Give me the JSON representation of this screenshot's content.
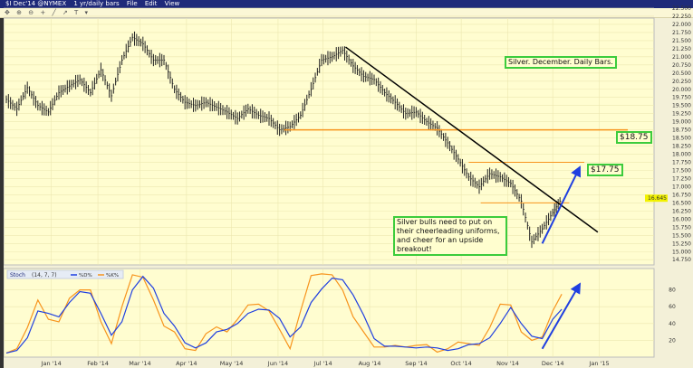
{
  "window": {
    "symbol": "$I Dec'14 @NYMEX",
    "period": "1 yr/daily bars",
    "menu": [
      "File",
      "Edit",
      "View"
    ]
  },
  "toolbar": {
    "icons": [
      "hand-icon",
      "zoom-in-icon",
      "zoom-out-icon",
      "crosshair-icon",
      "trendline-icon",
      "arrow-icon",
      "text-icon",
      "dropdown-icon"
    ]
  },
  "colors": {
    "background": "#fffdd0",
    "bars": "#222222",
    "support": "#f7941d",
    "trendline": "#000000",
    "arrow": "#1f3fe0",
    "stoch_d": "#1f3fe0",
    "stoch_k": "#f7941d",
    "label_border": "#3ccc3c",
    "last_price_highlight": "#f2f200"
  },
  "chart_data": [
    {
      "type": "bar",
      "title": "",
      "ylim": [
        14.75,
        22.5
      ],
      "yticks": [
        "22.500",
        "22.250",
        "22.000",
        "21.750",
        "21.500",
        "21.250",
        "21.000",
        "20.750",
        "20.500",
        "20.250",
        "20.000",
        "19.750",
        "19.500",
        "19.250",
        "19.000",
        "18.750",
        "18.500",
        "18.250",
        "18.000",
        "17.750",
        "17.500",
        "17.250",
        "17.000",
        "16.750",
        "16.500",
        "16.250",
        "16.000",
        "15.750",
        "15.500",
        "15.250",
        "15.000",
        "14.750"
      ],
      "last_price": "16.645",
      "dates": [
        "2013-12-02",
        "2013-12-09",
        "2013-12-16",
        "2013-12-23",
        "2013-12-30",
        "2014-01-06",
        "2014-01-13",
        "2014-01-20",
        "2014-01-27",
        "2014-02-03",
        "2014-02-10",
        "2014-02-17",
        "2014-02-24",
        "2014-03-03",
        "2014-03-10",
        "2014-03-17",
        "2014-03-24",
        "2014-03-31",
        "2014-04-07",
        "2014-04-14",
        "2014-04-21",
        "2014-04-28",
        "2014-05-05",
        "2014-05-12",
        "2014-05-19",
        "2014-05-26",
        "2014-06-02",
        "2014-06-09",
        "2014-06-16",
        "2014-06-23",
        "2014-06-30",
        "2014-07-07",
        "2014-07-14",
        "2014-07-21",
        "2014-07-28",
        "2014-08-04",
        "2014-08-11",
        "2014-08-18",
        "2014-08-25",
        "2014-09-01",
        "2014-09-08",
        "2014-09-15",
        "2014-09-22",
        "2014-09-29",
        "2014-10-06",
        "2014-10-13",
        "2014-10-20",
        "2014-10-27",
        "2014-11-03",
        "2014-11-10",
        "2014-11-17",
        "2014-11-24",
        "2014-12-01",
        "2014-12-07"
      ],
      "close": [
        19.69,
        19.4,
        20.05,
        19.5,
        19.3,
        19.9,
        20.1,
        20.3,
        19.9,
        20.6,
        19.8,
        20.9,
        21.6,
        21.4,
        20.9,
        20.9,
        20.0,
        19.6,
        19.5,
        19.6,
        19.45,
        19.3,
        19.1,
        19.4,
        19.2,
        19.1,
        18.75,
        18.85,
        19.2,
        20.0,
        20.9,
        21.0,
        21.2,
        20.72,
        20.4,
        20.3,
        19.9,
        19.6,
        19.25,
        19.3,
        19.0,
        18.8,
        18.35,
        17.85,
        17.3,
        17.0,
        17.4,
        17.3,
        17.1,
        16.55,
        15.3,
        15.7,
        16.2,
        16.645
      ],
      "xticks": [
        {
          "date": "2014-01-01",
          "label": "Jan '14"
        },
        {
          "date": "2014-02-01",
          "label": "Feb '14"
        },
        {
          "date": "2014-03-01",
          "label": "Mar '14"
        },
        {
          "date": "2014-04-01",
          "label": "Apr '14"
        },
        {
          "date": "2014-05-01",
          "label": "May '14"
        },
        {
          "date": "2014-06-01",
          "label": "Jun '14"
        },
        {
          "date": "2014-07-01",
          "label": "Jul '14"
        },
        {
          "date": "2014-08-01",
          "label": "Aug '14"
        },
        {
          "date": "2014-09-01",
          "label": "Sep '14"
        },
        {
          "date": "2014-10-01",
          "label": "Oct '14"
        },
        {
          "date": "2014-11-01",
          "label": "Nov '14"
        },
        {
          "date": "2014-12-01",
          "label": "Dec '14"
        },
        {
          "date": "2015-01-01",
          "label": "Jan '15"
        }
      ],
      "annotations": {
        "trendline": {
          "from": [
            "2014-07-16",
            21.3
          ],
          "to": [
            "2014-12-31",
            15.6
          ]
        },
        "support_lines": [
          {
            "from": "2014-06-05",
            "to": "2015-01-20",
            "price": 18.75
          },
          {
            "from": "2014-10-06",
            "to": "2014-12-22",
            "price": 17.75
          },
          {
            "from": "2014-10-14",
            "to": "2014-12-12",
            "price": 16.5
          }
        ],
        "arrow": {
          "from": [
            "2014-11-24",
            15.25
          ],
          "to": [
            "2014-12-19",
            17.6
          ]
        },
        "labels": {
          "level_1875": "$18.75",
          "level_1775": "$17.75",
          "title_note": "Silver. December. Daily Bars.",
          "comment": "Silver bulls need to put on their cheerleading uniforms, and cheer for an upside breakout!"
        }
      }
    },
    {
      "type": "line",
      "indicator": "Stoch",
      "params": "(14, 7, 7)",
      "legend": {
        "d": "%D%",
        "k": "%K%"
      },
      "ylim": [
        0,
        100
      ],
      "yticks": [
        "80",
        "60",
        "40",
        "20"
      ],
      "series": [
        {
          "name": "%D%",
          "values": [
            5,
            8,
            23,
            55,
            52,
            48,
            65,
            78,
            76,
            52,
            26,
            42,
            80,
            96,
            82,
            52,
            37,
            17,
            11,
            17,
            30,
            33,
            40,
            52,
            57,
            56,
            46,
            24,
            36,
            65,
            81,
            94,
            92,
            74,
            50,
            22,
            13,
            13,
            12,
            11,
            12,
            11,
            8,
            10,
            15,
            16,
            23,
            40,
            59,
            40,
            25,
            22,
            45,
            57
          ]
        },
        {
          "name": "%K%",
          "values": [
            5,
            10,
            35,
            68,
            45,
            42,
            70,
            80,
            80,
            42,
            16,
            60,
            98,
            95,
            68,
            37,
            30,
            10,
            8,
            28,
            36,
            30,
            45,
            62,
            63,
            55,
            33,
            10,
            55,
            97,
            99,
            98,
            80,
            48,
            30,
            12,
            12,
            14,
            12,
            14,
            15,
            6,
            10,
            18,
            16,
            14,
            35,
            63,
            62,
            30,
            20,
            24,
            55,
            75
          ]
        }
      ],
      "arrow": {
        "from": [
          "2014-11-24",
          10
        ],
        "to": [
          "2014-12-19",
          87
        ]
      }
    }
  ]
}
